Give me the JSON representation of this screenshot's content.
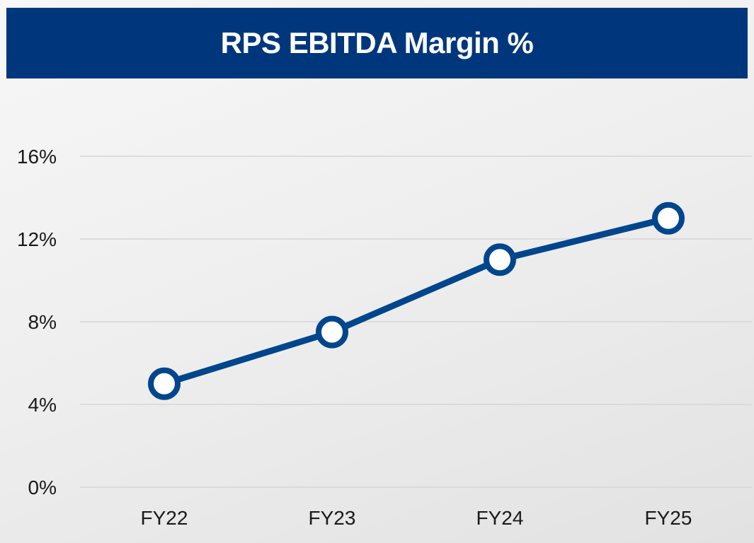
{
  "chart_data": {
    "type": "line",
    "title": "RPS EBITDA Margin %",
    "categories": [
      "FY22",
      "FY23",
      "FY24",
      "FY25"
    ],
    "series": [
      {
        "values": [
          5.0,
          7.5,
          11.0,
          13.0
        ]
      }
    ],
    "yticks": [
      "0%",
      "4%",
      "8%",
      "12%",
      "16%"
    ],
    "ylim": [
      0,
      16
    ],
    "grid": true,
    "legend": "none",
    "colors": {
      "title_bar": "#00377c",
      "line": "#00468c",
      "marker_fill": "#ffffff",
      "grid": "#d6d6d6"
    }
  }
}
